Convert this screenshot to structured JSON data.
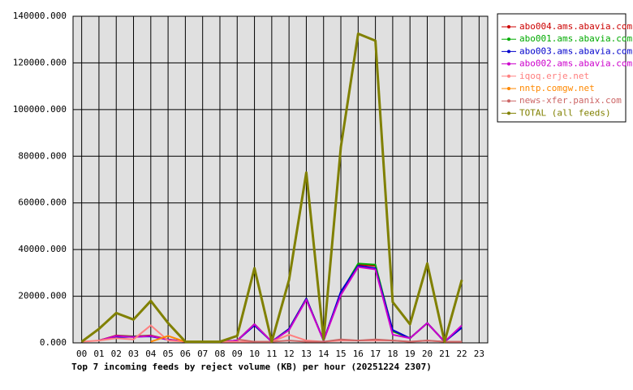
{
  "chart_data": {
    "type": "line",
    "title": "Top 7 incoming feeds by reject volume (KB) per hour (20251224 2307)",
    "categories": [
      "00",
      "01",
      "02",
      "03",
      "04",
      "05",
      "06",
      "07",
      "08",
      "09",
      "10",
      "11",
      "12",
      "13",
      "14",
      "15",
      "16",
      "17",
      "18",
      "19",
      "20",
      "21",
      "22",
      "23"
    ],
    "series": [
      {
        "name": "abo004.ams.abavia.com",
        "color": "#cc0000",
        "values": [
          null,
          1000,
          3200,
          2800,
          3200,
          1500,
          500,
          500,
          500,
          1000,
          8000,
          500,
          6000,
          19000,
          1000,
          21000,
          33500,
          33000,
          5000,
          2000,
          8500,
          500,
          7000,
          null
        ]
      },
      {
        "name": "abo001.ams.abavia.com",
        "color": "#00aa00",
        "values": [
          null,
          1000,
          3000,
          2700,
          3000,
          1500,
          500,
          500,
          500,
          1000,
          8000,
          500,
          6000,
          19000,
          1000,
          21500,
          34000,
          33500,
          5000,
          2000,
          8500,
          500,
          7000,
          null
        ]
      },
      {
        "name": "abo003.ams.abavia.com",
        "color": "#0000cc",
        "values": [
          null,
          1000,
          2500,
          2600,
          2800,
          1400,
          500,
          500,
          500,
          1000,
          7500,
          500,
          6000,
          19000,
          1000,
          22000,
          33000,
          32000,
          5500,
          2000,
          8500,
          500,
          6500,
          null
        ]
      },
      {
        "name": "abo002.ams.abavia.com",
        "color": "#cc00cc",
        "values": [
          null,
          1000,
          3000,
          2500,
          3000,
          1400,
          500,
          500,
          500,
          1000,
          8000,
          500,
          5500,
          18500,
          1000,
          20500,
          32500,
          31500,
          3500,
          2000,
          8500,
          500,
          7500,
          null
        ]
      },
      {
        "name": "iqoq.erje.net",
        "color": "#ff8080",
        "values": [
          500,
          1000,
          2000,
          1500,
          7500,
          1000,
          500,
          500,
          500,
          500,
          500,
          500,
          3500,
          1000,
          500,
          1000,
          1000,
          1000,
          1000,
          500,
          1000,
          500,
          500,
          null
        ]
      },
      {
        "name": "nntp.comgw.net",
        "color": "#ff8800",
        "values": [
          null,
          null,
          null,
          null,
          500,
          3000,
          500,
          null,
          null,
          null,
          null,
          null,
          null,
          null,
          null,
          null,
          null,
          null,
          null,
          null,
          null,
          null,
          null,
          null
        ]
      },
      {
        "name": "news-xfer.panix.com",
        "color": "#cc6666",
        "values": [
          null,
          null,
          null,
          null,
          null,
          null,
          null,
          null,
          null,
          1500,
          500,
          500,
          1000,
          500,
          500,
          1500,
          1000,
          1500,
          1000,
          500,
          1000,
          500,
          500,
          null
        ]
      },
      {
        "name": "TOTAL (all feeds)",
        "color": "#808000",
        "values": [
          500,
          6000,
          12800,
          10000,
          18000,
          8500,
          500,
          500,
          500,
          3000,
          32000,
          500,
          27000,
          73000,
          1500,
          84000,
          132500,
          129500,
          17500,
          8000,
          34000,
          500,
          27000,
          null
        ]
      }
    ],
    "ylim": [
      0,
      140000
    ],
    "yticks": [
      {
        "value": 0,
        "label": "0.000"
      },
      {
        "value": 20000,
        "label": "20000.000"
      },
      {
        "value": 40000,
        "label": "40000.000"
      },
      {
        "value": 60000,
        "label": "60000.000"
      },
      {
        "value": 80000,
        "label": "80000.000"
      },
      {
        "value": 100000,
        "label": "100000.000"
      },
      {
        "value": 120000,
        "label": "120000.000"
      },
      {
        "value": 140000,
        "label": "140000.000"
      }
    ],
    "grid": true,
    "legend": "right"
  }
}
